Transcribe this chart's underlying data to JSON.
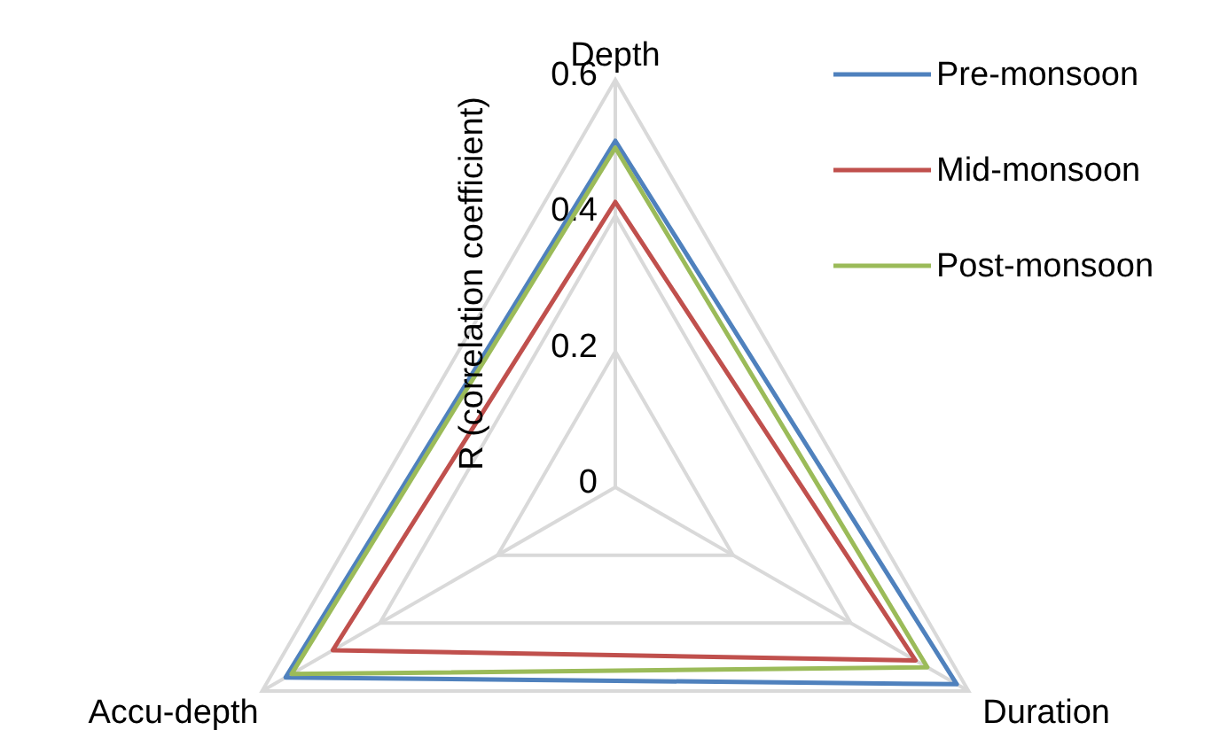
{
  "chart_data": {
    "type": "radar",
    "ylabel": "R (correlation coefficient)",
    "categories": [
      "Depth",
      "Duration",
      "Accu-depth"
    ],
    "series": [
      {
        "name": "Pre-monsoon",
        "color": "#4f81bd",
        "values": [
          0.51,
          0.58,
          0.56
        ]
      },
      {
        "name": "Mid-monsoon",
        "color": "#c0504d",
        "values": [
          0.42,
          0.51,
          0.48
        ]
      },
      {
        "name": "Post-monsoon",
        "color": "#9bbb59",
        "values": [
          0.5,
          0.53,
          0.55
        ]
      }
    ],
    "ylim": [
      0,
      0.6
    ],
    "yticks": [
      0,
      0.2,
      0.4,
      0.6
    ],
    "grid": true,
    "legend": "top right"
  }
}
